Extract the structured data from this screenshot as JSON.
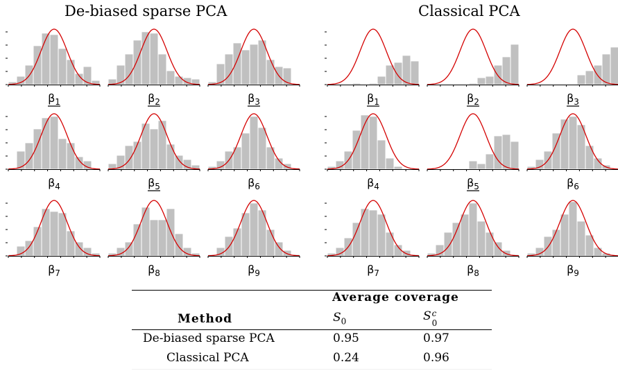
{
  "panel_titles": [
    "De-biased sparse PCA",
    "Classical PCA"
  ],
  "colors": {
    "bar": "#c0c0c0",
    "bar_edge": "#ffffff",
    "curve": "#d40000",
    "axis": "#000000"
  },
  "chart_data": [
    {
      "type": "bar",
      "title": "De-biased sparse PCA",
      "x_range": [
        -3.5,
        3.5
      ],
      "curve": "normal density, mean 0, sd 1",
      "panels": [
        {
          "label": "β1",
          "underline": true,
          "values": [
            0.02,
            0.06,
            0.14,
            0.28,
            0.37,
            0.36,
            0.26,
            0.18,
            0.08,
            0.13,
            0.03
          ]
        },
        {
          "label": "β2",
          "underline": true,
          "values": [
            0.04,
            0.14,
            0.22,
            0.32,
            0.38,
            0.37,
            0.22,
            0.1,
            0.06,
            0.05,
            0.04
          ]
        },
        {
          "label": "β3",
          "underline": true,
          "values": [
            0.02,
            0.15,
            0.22,
            0.3,
            0.25,
            0.29,
            0.32,
            0.18,
            0.13,
            0.12,
            0.0
          ]
        },
        {
          "label": "β4",
          "underline": false,
          "values": [
            0.01,
            0.13,
            0.19,
            0.29,
            0.37,
            0.38,
            0.22,
            0.19,
            0.09,
            0.06,
            0.0
          ]
        },
        {
          "label": "β5",
          "underline": true,
          "values": [
            0.04,
            0.1,
            0.17,
            0.2,
            0.33,
            0.29,
            0.35,
            0.18,
            0.1,
            0.07,
            0.03
          ]
        },
        {
          "label": "β6",
          "underline": false,
          "values": [
            0.02,
            0.06,
            0.13,
            0.16,
            0.26,
            0.38,
            0.3,
            0.16,
            0.08,
            0.04,
            0.01
          ]
        },
        {
          "label": "β7",
          "underline": false,
          "values": [
            0.01,
            0.07,
            0.11,
            0.21,
            0.34,
            0.32,
            0.31,
            0.18,
            0.1,
            0.06,
            0.02
          ]
        },
        {
          "label": "β8",
          "underline": false,
          "values": [
            0.02,
            0.06,
            0.1,
            0.23,
            0.35,
            0.26,
            0.26,
            0.34,
            0.16,
            0.06,
            0.02
          ]
        },
        {
          "label": "β9",
          "underline": false,
          "values": [
            0.01,
            0.06,
            0.14,
            0.2,
            0.31,
            0.38,
            0.33,
            0.19,
            0.1,
            0.04,
            0.01
          ]
        }
      ]
    },
    {
      "type": "bar",
      "title": "Classical PCA",
      "x_range": [
        -3.5,
        3.5
      ],
      "curve": "normal density, mean 0, sd 1",
      "panels": [
        {
          "label": "β1",
          "underline": true,
          "values": [
            0.0,
            0.0,
            0.0,
            0.01,
            0.0,
            0.01,
            0.06,
            0.14,
            0.16,
            0.21,
            0.17
          ]
        },
        {
          "label": "β2",
          "underline": true,
          "values": [
            0.0,
            0.0,
            0.0,
            0.0,
            0.0,
            0.01,
            0.05,
            0.06,
            0.14,
            0.2,
            0.29
          ]
        },
        {
          "label": "β3",
          "underline": true,
          "values": [
            0.0,
            0.0,
            0.0,
            0.0,
            0.0,
            0.0,
            0.07,
            0.1,
            0.14,
            0.22,
            0.27
          ]
        },
        {
          "label": "β4",
          "underline": false,
          "values": [
            0.02,
            0.06,
            0.13,
            0.28,
            0.39,
            0.38,
            0.21,
            0.08,
            0.02,
            0.0,
            0.0
          ]
        },
        {
          "label": "β5",
          "underline": true,
          "values": [
            0.0,
            0.0,
            0.0,
            0.0,
            0.0,
            0.06,
            0.04,
            0.11,
            0.24,
            0.25,
            0.2
          ]
        },
        {
          "label": "β6",
          "underline": false,
          "values": [
            0.02,
            0.07,
            0.13,
            0.26,
            0.36,
            0.38,
            0.32,
            0.17,
            0.08,
            0.03,
            0.0
          ]
        },
        {
          "label": "β7",
          "underline": false,
          "values": [
            0.02,
            0.06,
            0.13,
            0.24,
            0.34,
            0.33,
            0.3,
            0.17,
            0.08,
            0.04,
            0.01
          ]
        },
        {
          "label": "β8",
          "underline": false,
          "values": [
            0.02,
            0.08,
            0.17,
            0.24,
            0.3,
            0.38,
            0.25,
            0.17,
            0.1,
            0.04,
            0.01
          ]
        },
        {
          "label": "β9",
          "underline": false,
          "values": [
            0.02,
            0.06,
            0.14,
            0.19,
            0.3,
            0.39,
            0.25,
            0.15,
            0.06,
            0.02,
            0.0
          ]
        }
      ]
    }
  ],
  "table": {
    "group_header": "Average coverage",
    "method_header": "Method",
    "col1_header": "S",
    "col1_sub": "0",
    "col2_header": "S",
    "col2_sub": "0",
    "col2_sup": "c",
    "rows": [
      {
        "method": "De-biased sparse PCA",
        "s0": "0.95",
        "s0c": "0.97"
      },
      {
        "method": "Classical PCA",
        "s0": "0.24",
        "s0c": "0.96"
      }
    ]
  }
}
